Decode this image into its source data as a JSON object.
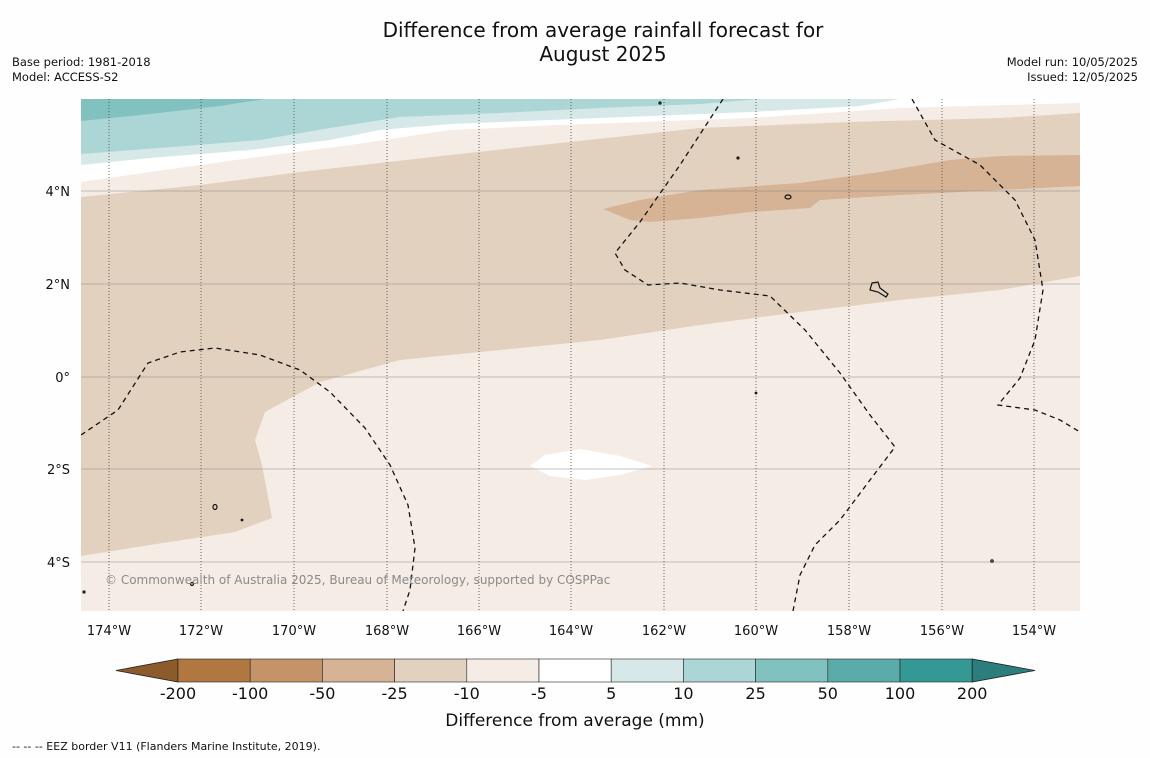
{
  "title_line1": "Difference from average rainfall forecast for",
  "title_line2": "August 2025",
  "base_period": "Base period: 1981-2018",
  "model": "Model: ACCESS-S2",
  "model_run": "Model run: 10/05/2025",
  "issued": "Issued: 12/05/2025",
  "copyright": "© Commonwealth of Australia 2025, Bureau of Meteorology, supported by COSPPac",
  "footer": "-- -- -- EEZ border V11 (Flanders Marine Institute, 2019).",
  "lat_labels": [
    "4°N",
    "2°N",
    "0°",
    "2°S",
    "4°S"
  ],
  "lon_labels": [
    "174°W",
    "172°W",
    "170°W",
    "168°W",
    "166°W",
    "164°W",
    "162°W",
    "160°W",
    "158°W",
    "156°W",
    "154°W"
  ],
  "colorbar": {
    "title": "Difference from average (mm)",
    "ticks": [
      "-200",
      "-100",
      "-50",
      "-25",
      "-10",
      "-5",
      "5",
      "10",
      "25",
      "50",
      "100",
      "200"
    ],
    "under_color": "#8c5a2b",
    "over_color": "#2b7e7b",
    "colors": [
      "#b07840",
      "#c49468",
      "#d6b394",
      "#e3d1bf",
      "#f5ece6",
      "#ffffff",
      "#d6e9e8",
      "#acd6d6",
      "#81c1c0",
      "#5aabaa",
      "#349894"
    ]
  },
  "legend_colors": {
    "brown_strong": "#d6b394",
    "brown_mid": "#e3d1bf",
    "brown_light": "#f5ece6",
    "teal_light": "#d6e9e8",
    "teal_mid": "#acd6d6",
    "teal_strong": "#81c1c0"
  }
}
